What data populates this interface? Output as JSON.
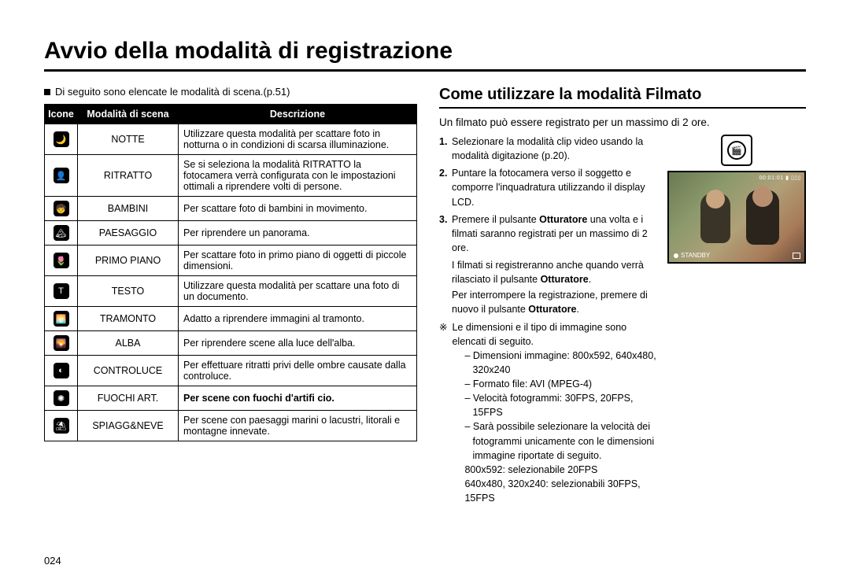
{
  "page_title": "Avvio della modalità di registrazione",
  "page_number": "024",
  "left": {
    "intro": "Di seguito sono elencate le modalità di scena.(p.51)",
    "headers": {
      "icons": "Icone",
      "mode": "Modalità di scena",
      "desc": "Descrizione"
    },
    "rows": [
      {
        "glyph": "🌙",
        "mode": "NOTTE",
        "desc": "Utilizzare questa modalità per scattare foto in notturna o in condizioni di scarsa illuminazione."
      },
      {
        "glyph": "👤",
        "mode": "RITRATTO",
        "desc": "Se si seleziona la modalità RITRATTO la fotocamera verrà configurata con le impostazioni ottimali a riprendere volti di persone."
      },
      {
        "glyph": "🧒",
        "mode": "BAMBINI",
        "desc": "Per scattare foto di bambini in movimento."
      },
      {
        "glyph": "🏔",
        "mode": "PAESAGGIO",
        "desc": "Per riprendere un panorama."
      },
      {
        "glyph": "🌷",
        "mode": "PRIMO PIANO",
        "desc": "Per scattare foto in primo piano di oggetti di piccole dimensioni."
      },
      {
        "glyph": "T",
        "mode": "TESTO",
        "desc": "Utilizzare questa modalità per scattare una foto di un documento."
      },
      {
        "glyph": "🌅",
        "mode": "TRAMONTO",
        "desc": "Adatto a riprendere immagini al tramonto."
      },
      {
        "glyph": "🌄",
        "mode": "ALBA",
        "desc": "Per riprendere scene alla luce dell'alba."
      },
      {
        "glyph": "◐",
        "mode": "CONTROLUCE",
        "desc": "Per effettuare ritratti privi delle ombre causate dalla controluce."
      },
      {
        "glyph": "✺",
        "mode": "FUOCHI ART.",
        "desc": "Per scene con fuochi d'artifi cio.",
        "bold": true
      },
      {
        "glyph": "⛱",
        "mode": "SPIAGG&NEVE",
        "desc": "Per scene con paesaggi marini o lacustri, litorali e montagne innevate."
      }
    ]
  },
  "right": {
    "subheading": "Come utilizzare la modalità Filmato",
    "lead": "Un filmato può essere registrato per un massimo di 2 ore.",
    "steps": [
      {
        "n": "1.",
        "text_before": "Selezionare la modalità clip video usando la modalità digitazione (p.20)."
      },
      {
        "n": "2.",
        "text_before": "Puntare la fotocamera verso il soggetto e comporre l'inquadratura utilizzando il display LCD."
      },
      {
        "n": "3.",
        "text_before": "Premere il pulsante ",
        "bold1": "Otturatore",
        "text_mid": " una volta e i filmati saranno registrati per un massimo di 2 ore."
      }
    ],
    "note_line1_a": "I filmati si registreranno anche quando verrà rilasciato il pulsante ",
    "note_line1_bold": "Otturatore",
    "note_line1_b": ".",
    "note_line2_a": "Per interrompere la registrazione, premere di nuovo il pulsante ",
    "note_line2_bold": "Otturatore",
    "note_line2_b": ".",
    "star_lead": "Le dimensioni e il tipo di immagine sono elencati di seguito.",
    "dash": [
      "Dimensioni immagine:  800x592, 640x480, 320x240",
      "Formato file:   AVI (MPEG-4)",
      "Velocità fotogrammi:   30FPS, 20FPS, 15FPS",
      "Sarà possibile selezionare la velocità dei fotogrammi unicamente con le dimensioni immagine riportate di seguito."
    ],
    "sublines": [
      "800x592: selezionabile 20FPS",
      "640x480, 320x240: selezionabili 30FPS, 15FPS"
    ],
    "lcd": {
      "hud_top": "00:01:01  ▮ ▯▯▯",
      "standby": "STANDBY"
    }
  }
}
